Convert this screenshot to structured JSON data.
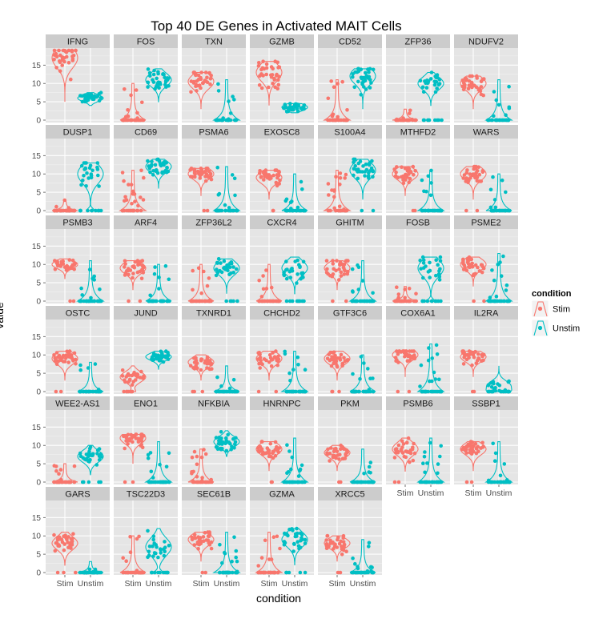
{
  "chart_data": {
    "type": "violin",
    "title": "Top 40 DE Genes in Activated MAIT Cells",
    "xlabel": "condition",
    "ylabel": "value",
    "facet_ncol": 7,
    "categories": [
      "Stim",
      "Unstim"
    ],
    "ylim": [
      0,
      19
    ],
    "yticks": [
      0,
      5,
      10,
      15
    ],
    "grid": true,
    "legend": {
      "title": "condition",
      "position": "right",
      "entries": [
        {
          "name": "Stim",
          "color": "#F8766D"
        },
        {
          "name": "Unstim",
          "color": "#00BFC4"
        }
      ]
    },
    "facets": [
      {
        "gene": "IFNG",
        "stim": {
          "center": 17,
          "min": 5,
          "max": 19,
          "zero": 0
        },
        "unstim": {
          "center": 6,
          "min": 4,
          "max": 7.5,
          "zero": 0
        }
      },
      {
        "gene": "FOS",
        "stim": {
          "center": 0,
          "min": 0,
          "max": 10,
          "zero": 0.7
        },
        "unstim": {
          "center": 11,
          "min": 5,
          "max": 14,
          "zero": 0
        }
      },
      {
        "gene": "TXN",
        "stim": {
          "center": 10.5,
          "min": 3,
          "max": 13,
          "zero": 0
        },
        "unstim": {
          "center": 0,
          "min": 0,
          "max": 11,
          "zero": 0.75
        }
      },
      {
        "gene": "GZMB",
        "stim": {
          "center": 13,
          "min": 4,
          "max": 16,
          "zero": 0
        },
        "unstim": {
          "center": 3.5,
          "min": 2,
          "max": 4.5,
          "zero": 0
        }
      },
      {
        "gene": "CD52",
        "stim": {
          "center": 0,
          "min": 0,
          "max": 11,
          "zero": 0.7
        },
        "unstim": {
          "center": 12,
          "min": 3,
          "max": 14,
          "zero": 0
        }
      },
      {
        "gene": "ZFP36",
        "stim": {
          "center": 0,
          "min": 0,
          "max": 3,
          "zero": 0.85
        },
        "unstim": {
          "center": 10,
          "min": 4,
          "max": 13,
          "zero": 0.25
        }
      },
      {
        "gene": "NDUFV2",
        "stim": {
          "center": 10,
          "min": 3,
          "max": 12,
          "zero": 0
        },
        "unstim": {
          "center": 0,
          "min": 0,
          "max": 11,
          "zero": 0.75
        }
      },
      {
        "gene": "DUSP1",
        "stim": {
          "center": 0,
          "min": 0,
          "max": 3,
          "zero": 0.9
        },
        "unstim": {
          "center": 10,
          "min": 0,
          "max": 13,
          "zero": 0.3
        }
      },
      {
        "gene": "CD69",
        "stim": {
          "center": 0,
          "min": 0,
          "max": 11,
          "zero": 0.5
        },
        "unstim": {
          "center": 12,
          "min": 6,
          "max": 14,
          "zero": 0
        }
      },
      {
        "gene": "PSMA6",
        "stim": {
          "center": 10,
          "min": 4,
          "max": 11.5,
          "zero": 0.05
        },
        "unstim": {
          "center": 0,
          "min": 0,
          "max": 12,
          "zero": 0.75
        }
      },
      {
        "gene": "EXOSC8",
        "stim": {
          "center": 9,
          "min": 3,
          "max": 11,
          "zero": 0.05
        },
        "unstim": {
          "center": 0,
          "min": 0,
          "max": 10,
          "zero": 0.75
        }
      },
      {
        "gene": "S100A4",
        "stim": {
          "center": 0,
          "min": 0,
          "max": 11,
          "zero": 0.55
        },
        "unstim": {
          "center": 11,
          "min": 3,
          "max": 14,
          "zero": 0.05
        }
      },
      {
        "gene": "MTHFD2",
        "stim": {
          "center": 10,
          "min": 4,
          "max": 12,
          "zero": 0.05
        },
        "unstim": {
          "center": 0,
          "min": 0,
          "max": 11,
          "zero": 0.8
        }
      },
      {
        "gene": "WARS",
        "stim": {
          "center": 10,
          "min": 3,
          "max": 12,
          "zero": 0.05
        },
        "unstim": {
          "center": 0,
          "min": 0,
          "max": 10,
          "zero": 0.8
        }
      },
      {
        "gene": "PSMB3",
        "stim": {
          "center": 10,
          "min": 6,
          "max": 11.5,
          "zero": 0.05
        },
        "unstim": {
          "center": 0,
          "min": 0,
          "max": 11,
          "zero": 0.75
        }
      },
      {
        "gene": "ARF4",
        "stim": {
          "center": 9,
          "min": 3,
          "max": 11,
          "zero": 0.05
        },
        "unstim": {
          "center": 0,
          "min": 0,
          "max": 10,
          "zero": 0.8
        }
      },
      {
        "gene": "ZFP36L2",
        "stim": {
          "center": 0,
          "min": 0,
          "max": 10,
          "zero": 0.75
        },
        "unstim": {
          "center": 9,
          "min": 2,
          "max": 11.5,
          "zero": 0.15
        }
      },
      {
        "gene": "CXCR4",
        "stim": {
          "center": 0,
          "min": 0,
          "max": 10,
          "zero": 0.8
        },
        "unstim": {
          "center": 9,
          "min": 2,
          "max": 12,
          "zero": 0.25
        }
      },
      {
        "gene": "GHITM",
        "stim": {
          "center": 9,
          "min": 3,
          "max": 11,
          "zero": 0.05
        },
        "unstim": {
          "center": 0,
          "min": 0,
          "max": 11,
          "zero": 0.75
        }
      },
      {
        "gene": "FOSB",
        "stim": {
          "center": 0,
          "min": 0,
          "max": 4,
          "zero": 0.75
        },
        "unstim": {
          "center": 9,
          "min": 0,
          "max": 12,
          "zero": 0.3
        }
      },
      {
        "gene": "PSME2",
        "stim": {
          "center": 10,
          "min": 4,
          "max": 12,
          "zero": 0.05
        },
        "unstim": {
          "center": 0,
          "min": 0,
          "max": 13,
          "zero": 0.7
        }
      },
      {
        "gene": "OSTC",
        "stim": {
          "center": 9,
          "min": 3,
          "max": 11,
          "zero": 0.05
        },
        "unstim": {
          "center": 0,
          "min": 0,
          "max": 8,
          "zero": 0.85
        }
      },
      {
        "gene": "JUND",
        "stim": {
          "center": 4,
          "min": 0,
          "max": 7,
          "zero": 0.2
        },
        "unstim": {
          "center": 9.5,
          "min": 6,
          "max": 11,
          "zero": 0
        }
      },
      {
        "gene": "TXNRD1",
        "stim": {
          "center": 8,
          "min": 3,
          "max": 10,
          "zero": 0.1
        },
        "unstim": {
          "center": 0,
          "min": 0,
          "max": 7,
          "zero": 0.85
        }
      },
      {
        "gene": "CHCHD2",
        "stim": {
          "center": 9,
          "min": 3,
          "max": 11,
          "zero": 0.05
        },
        "unstim": {
          "center": 0,
          "min": 0,
          "max": 11,
          "zero": 0.75
        }
      },
      {
        "gene": "GTF3C6",
        "stim": {
          "center": 9,
          "min": 3,
          "max": 11,
          "zero": 0.1
        },
        "unstim": {
          "center": 0,
          "min": 0,
          "max": 10,
          "zero": 0.75
        }
      },
      {
        "gene": "COX6A1",
        "stim": {
          "center": 10,
          "min": 4,
          "max": 11,
          "zero": 0.05
        },
        "unstim": {
          "center": 0,
          "min": 0,
          "max": 13,
          "zero": 0.65
        }
      },
      {
        "gene": "IL2RA",
        "stim": {
          "center": 9.5,
          "min": 4,
          "max": 11,
          "zero": 0.05
        },
        "unstim": {
          "center": 1.5,
          "min": 0,
          "max": 7,
          "zero": 0.4
        }
      },
      {
        "gene": "WEE2-AS1",
        "stim": {
          "center": 0,
          "min": 0,
          "max": 5,
          "zero": 0.8
        },
        "unstim": {
          "center": 7,
          "min": 2,
          "max": 10,
          "zero": 0.15
        }
      },
      {
        "gene": "ENO1",
        "stim": {
          "center": 12,
          "min": 5,
          "max": 13,
          "zero": 0.05
        },
        "unstim": {
          "center": 0,
          "min": 0,
          "max": 11,
          "zero": 0.75
        }
      },
      {
        "gene": "NFKBIA",
        "stim": {
          "center": 0,
          "min": 0,
          "max": 9,
          "zero": 0.55
        },
        "unstim": {
          "center": 11,
          "min": 7,
          "max": 14,
          "zero": 0
        }
      },
      {
        "gene": "HNRNPC",
        "stim": {
          "center": 9,
          "min": 3,
          "max": 11,
          "zero": 0.05
        },
        "unstim": {
          "center": 0,
          "min": 0,
          "max": 12,
          "zero": 0.7
        }
      },
      {
        "gene": "PKM",
        "stim": {
          "center": 8,
          "min": 3,
          "max": 10,
          "zero": 0.05
        },
        "unstim": {
          "center": 0,
          "min": 0,
          "max": 9,
          "zero": 0.85
        }
      },
      {
        "gene": "PSMB6",
        "stim": {
          "center": 9,
          "min": 3,
          "max": 12,
          "zero": 0.05
        },
        "unstim": {
          "center": 0,
          "min": 0,
          "max": 12,
          "zero": 0.7
        }
      },
      {
        "gene": "SSBP1",
        "stim": {
          "center": 9,
          "min": 3,
          "max": 11,
          "zero": 0.05
        },
        "unstim": {
          "center": 0,
          "min": 0,
          "max": 11,
          "zero": 0.8
        }
      },
      {
        "gene": "GARS",
        "stim": {
          "center": 8,
          "min": 2,
          "max": 11,
          "zero": 0.1
        },
        "unstim": {
          "center": 0,
          "min": 0,
          "max": 3,
          "zero": 0.9
        }
      },
      {
        "gene": "TSC22D3",
        "stim": {
          "center": 0,
          "min": 0,
          "max": 10,
          "zero": 0.8
        },
        "unstim": {
          "center": 7,
          "min": 0,
          "max": 12,
          "zero": 0.3
        }
      },
      {
        "gene": "SEC61B",
        "stim": {
          "center": 9,
          "min": 3,
          "max": 11,
          "zero": 0.05
        },
        "unstim": {
          "center": 0,
          "min": 0,
          "max": 11,
          "zero": 0.7
        }
      },
      {
        "gene": "GZMA",
        "stim": {
          "center": 0,
          "min": 0,
          "max": 11,
          "zero": 0.75
        },
        "unstim": {
          "center": 9,
          "min": 2,
          "max": 12,
          "zero": 0.15
        }
      },
      {
        "gene": "XRCC5",
        "stim": {
          "center": 8,
          "min": 3,
          "max": 10,
          "zero": 0.05
        },
        "unstim": {
          "center": 0,
          "min": 0,
          "max": 9,
          "zero": 0.7
        }
      }
    ]
  }
}
